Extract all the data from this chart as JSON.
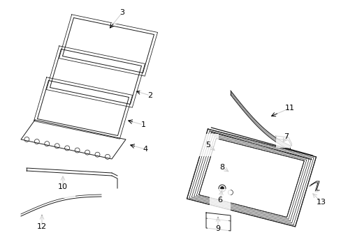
{
  "background_color": "#ffffff",
  "line_color": "#1a1a1a",
  "label_color": "#000000",
  "fig_width": 4.89,
  "fig_height": 3.6,
  "dpi": 100,
  "lw_thin": 0.7,
  "lw_med": 0.9,
  "label_fs": 8.0
}
